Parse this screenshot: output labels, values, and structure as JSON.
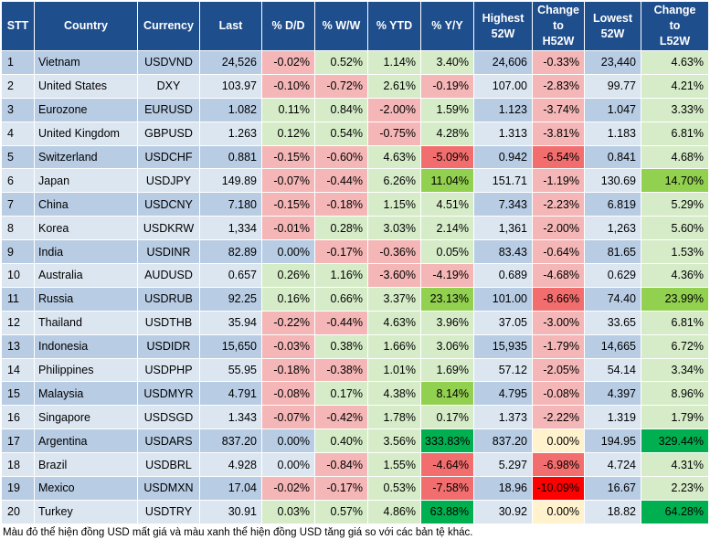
{
  "headers": [
    "STT",
    "Country",
    "Currency",
    "Last",
    "% D/D",
    "% W/W",
    "% YTD",
    "% Y/Y",
    "Highest\n52W",
    "Change\nto\nH52W",
    "Lowest\n52W",
    "Change\nto\nL52W"
  ],
  "rows": [
    [
      "1",
      "Vietnam",
      "USDVND",
      "24,526",
      "-0.02%",
      "0.52%",
      "1.14%",
      "3.40%",
      "24,606",
      "-0.33%",
      "23,440",
      "4.63%"
    ],
    [
      "2",
      "United States",
      "DXY",
      "103.97",
      "-0.10%",
      "-0.72%",
      "2.61%",
      "-0.19%",
      "107.00",
      "-2.83%",
      "99.77",
      "4.21%"
    ],
    [
      "3",
      "Eurozone",
      "EURUSD",
      "1.082",
      "0.11%",
      "0.84%",
      "-2.00%",
      "1.59%",
      "1.123",
      "-3.74%",
      "1.047",
      "3.33%"
    ],
    [
      "4",
      "United Kingdom",
      "GBPUSD",
      "1.263",
      "0.12%",
      "0.54%",
      "-0.75%",
      "4.28%",
      "1.313",
      "-3.81%",
      "1.183",
      "6.81%"
    ],
    [
      "5",
      "Switzerland",
      "USDCHF",
      "0.881",
      "-0.15%",
      "-0.60%",
      "4.63%",
      "-5.09%",
      "0.942",
      "-6.54%",
      "0.841",
      "4.68%"
    ],
    [
      "6",
      "Japan",
      "USDJPY",
      "149.89",
      "-0.07%",
      "-0.44%",
      "6.26%",
      "11.04%",
      "151.71",
      "-1.19%",
      "130.69",
      "14.70%"
    ],
    [
      "7",
      "China",
      "USDCNY",
      "7.180",
      "-0.15%",
      "-0.18%",
      "1.15%",
      "4.51%",
      "7.343",
      "-2.23%",
      "6.819",
      "5.29%"
    ],
    [
      "8",
      "Korea",
      "USDKRW",
      "1,334",
      "-0.01%",
      "0.28%",
      "3.03%",
      "2.14%",
      "1,361",
      "-2.00%",
      "1,263",
      "5.60%"
    ],
    [
      "9",
      "India",
      "USDINR",
      "82.89",
      "0.00%",
      "-0.17%",
      "-0.36%",
      "0.05%",
      "83.43",
      "-0.64%",
      "81.65",
      "1.53%"
    ],
    [
      "10",
      "Australia",
      "AUDUSD",
      "0.657",
      "0.26%",
      "1.16%",
      "-3.60%",
      "-4.19%",
      "0.689",
      "-4.68%",
      "0.629",
      "4.36%"
    ],
    [
      "11",
      "Russia",
      "USDRUB",
      "92.25",
      "0.16%",
      "0.66%",
      "3.37%",
      "23.13%",
      "101.00",
      "-8.66%",
      "74.40",
      "23.99%"
    ],
    [
      "12",
      "Thailand",
      "USDTHB",
      "35.94",
      "-0.22%",
      "-0.44%",
      "4.63%",
      "3.96%",
      "37.05",
      "-3.00%",
      "33.65",
      "6.81%"
    ],
    [
      "13",
      "Indonesia",
      "USDIDR",
      "15,650",
      "-0.03%",
      "0.38%",
      "1.66%",
      "3.06%",
      "15,935",
      "-1.79%",
      "14,665",
      "6.72%"
    ],
    [
      "14",
      "Philippines",
      "USDPHP",
      "55.95",
      "-0.18%",
      "-0.38%",
      "1.01%",
      "1.69%",
      "57.12",
      "-2.05%",
      "54.14",
      "3.34%"
    ],
    [
      "15",
      "Malaysia",
      "USDMYR",
      "4.791",
      "-0.08%",
      "0.17%",
      "4.38%",
      "8.14%",
      "4.795",
      "-0.08%",
      "4.397",
      "8.96%"
    ],
    [
      "16",
      "Singapore",
      "USDSGD",
      "1.343",
      "-0.07%",
      "-0.42%",
      "1.78%",
      "0.17%",
      "1.373",
      "-2.22%",
      "1.319",
      "1.79%"
    ],
    [
      "17",
      "Argentina",
      "USDARS",
      "837.20",
      "0.00%",
      "0.40%",
      "3.56%",
      "333.83%",
      "837.20",
      "0.00%",
      "194.95",
      "329.44%"
    ],
    [
      "18",
      "Brazil",
      "USDBRL",
      "4.928",
      "0.00%",
      "-0.84%",
      "1.55%",
      "-4.64%",
      "5.297",
      "-6.98%",
      "4.724",
      "4.31%"
    ],
    [
      "19",
      "Mexico",
      "USDMXN",
      "17.04",
      "-0.02%",
      "-0.17%",
      "0.53%",
      "-7.58%",
      "18.96",
      "-10.09%",
      "16.67",
      "2.23%"
    ],
    [
      "20",
      "Turkey",
      "USDTRY",
      "30.91",
      "0.03%",
      "0.57%",
      "4.86%",
      "63.88%",
      "30.92",
      "0.00%",
      "18.82",
      "64.28%"
    ]
  ],
  "colors": {
    "header_bg": "#1f4e8c",
    "row_odd": "#b8cce4",
    "row_even": "#dce6f1",
    "red_light": "#f4b6b6",
    "green_light": "#d6ecc8",
    "red_medium": "#f26d6d",
    "green_medium": "#92d050",
    "green_strong": "#00b050",
    "red_strong": "#ff0000",
    "neutral_yellow": "#fff2cc"
  },
  "footnote": "Màu đỏ thể hiện đồng USD mất giá và màu xanh thể hiện đồng USD tăng giá so với các bản tệ khác."
}
